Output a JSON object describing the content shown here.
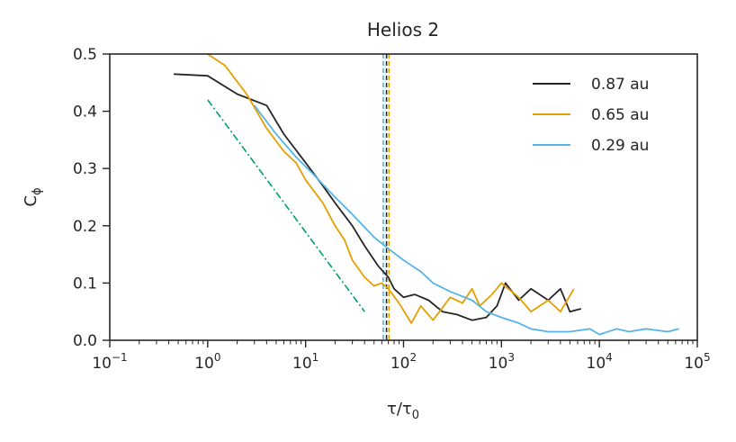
{
  "chart_data": {
    "type": "line",
    "title": "Helios 2",
    "xlabel": "τ/τ",
    "xlabel_sub": "0",
    "ylabel": "C",
    "ylabel_sub": "ϕ",
    "xscale": "log",
    "xlim": [
      0.1,
      100000
    ],
    "ylim": [
      0,
      0.5
    ],
    "y_ticks": [
      "0.0",
      "0.1",
      "0.2",
      "0.3",
      "0.4",
      "0.5"
    ],
    "x_ticks": [
      {
        "base": "10",
        "exp": "−1"
      },
      {
        "base": "10",
        "exp": "0"
      },
      {
        "base": "10",
        "exp": "1"
      },
      {
        "base": "10",
        "exp": "2"
      },
      {
        "base": "10",
        "exp": "3"
      },
      {
        "base": "10",
        "exp": "4"
      },
      {
        "base": "10",
        "exp": "5"
      }
    ],
    "grid": false,
    "legend_position": "top-right",
    "series": [
      {
        "name": "0.87 au",
        "color": "#262626",
        "x": [
          0.45,
          1.0,
          2.0,
          4.0,
          6.0,
          10,
          15,
          20,
          30,
          40,
          55,
          70,
          80,
          100,
          130,
          180,
          250,
          350,
          500,
          700,
          900,
          1100,
          1500,
          2000,
          3000,
          4000,
          5000,
          6500
        ],
        "y": [
          0.465,
          0.462,
          0.43,
          0.41,
          0.36,
          0.31,
          0.27,
          0.24,
          0.2,
          0.165,
          0.13,
          0.11,
          0.09,
          0.075,
          0.08,
          0.07,
          0.05,
          0.045,
          0.035,
          0.04,
          0.06,
          0.1,
          0.07,
          0.09,
          0.07,
          0.09,
          0.05,
          0.055
        ]
      },
      {
        "name": "0.65 au",
        "color": "#e69f00",
        "x": [
          1.0,
          1.5,
          2.5,
          4.0,
          6.0,
          8.0,
          10,
          15,
          20,
          25,
          30,
          40,
          50,
          60,
          70,
          90,
          120,
          150,
          200,
          300,
          400,
          500,
          600,
          800,
          1000,
          1500,
          2000,
          3000,
          4000,
          5500
        ],
        "y": [
          0.5,
          0.48,
          0.43,
          0.37,
          0.33,
          0.31,
          0.28,
          0.24,
          0.2,
          0.175,
          0.14,
          0.11,
          0.095,
          0.1,
          0.09,
          0.065,
          0.03,
          0.06,
          0.035,
          0.075,
          0.065,
          0.09,
          0.06,
          0.08,
          0.1,
          0.075,
          0.05,
          0.07,
          0.05,
          0.09
        ]
      },
      {
        "name": "0.29 au",
        "color": "#56b4e9",
        "x": [
          3.0,
          5.0,
          8.0,
          12,
          20,
          30,
          50,
          70,
          100,
          150,
          200,
          300,
          500,
          700,
          1000,
          1500,
          2000,
          3000,
          5000,
          8000,
          10000,
          15000,
          20000,
          30000,
          50000,
          65000
        ],
        "y": [
          0.41,
          0.36,
          0.32,
          0.29,
          0.25,
          0.22,
          0.18,
          0.16,
          0.14,
          0.12,
          0.1,
          0.085,
          0.07,
          0.05,
          0.04,
          0.03,
          0.02,
          0.015,
          0.015,
          0.02,
          0.01,
          0.02,
          0.015,
          0.02,
          0.015,
          0.02
        ]
      }
    ],
    "reference_line": {
      "color": "#009e73",
      "x": [
        1.0,
        40
      ],
      "y": [
        0.42,
        0.05
      ]
    },
    "vertical_lines": [
      {
        "x": 62,
        "color": "#56b4e9"
      },
      {
        "x": 67,
        "color": "#262626"
      },
      {
        "x": 71,
        "color": "#e69f00"
      }
    ]
  }
}
